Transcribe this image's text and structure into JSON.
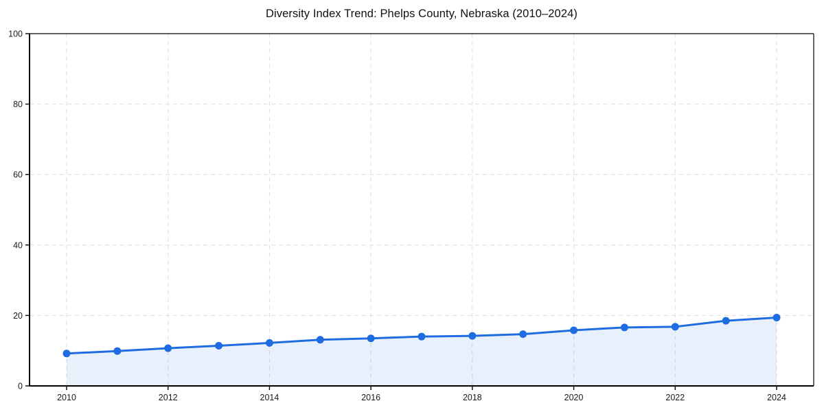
{
  "chart_data": {
    "type": "area",
    "title": "Diversity Index Trend: Phelps County, Nebraska (2010–2024)",
    "xlabel": "",
    "ylabel": "",
    "x": [
      2010,
      2011,
      2012,
      2013,
      2014,
      2015,
      2016,
      2017,
      2018,
      2019,
      2020,
      2021,
      2022,
      2023,
      2024
    ],
    "values": [
      9.2,
      9.9,
      10.7,
      11.4,
      12.2,
      13.1,
      13.5,
      14.0,
      14.2,
      14.7,
      15.8,
      16.6,
      16.8,
      18.5,
      19.4
    ],
    "xticks": [
      2010,
      2012,
      2014,
      2016,
      2018,
      2020,
      2022,
      2024
    ],
    "yticks": [
      0,
      20,
      40,
      60,
      80,
      100
    ],
    "xlim": [
      2010,
      2024
    ],
    "ylim": [
      0,
      100
    ],
    "grid": true,
    "legend": "none",
    "colors": {
      "line": "#1f6be0",
      "marker": "#1f6be0",
      "fill": "#1f6be0",
      "fill_opacity": 0.1,
      "grid": "#e0e0e0",
      "axis": "#000000",
      "tick_label": "#1a1a1a",
      "background": "#ffffff"
    }
  }
}
